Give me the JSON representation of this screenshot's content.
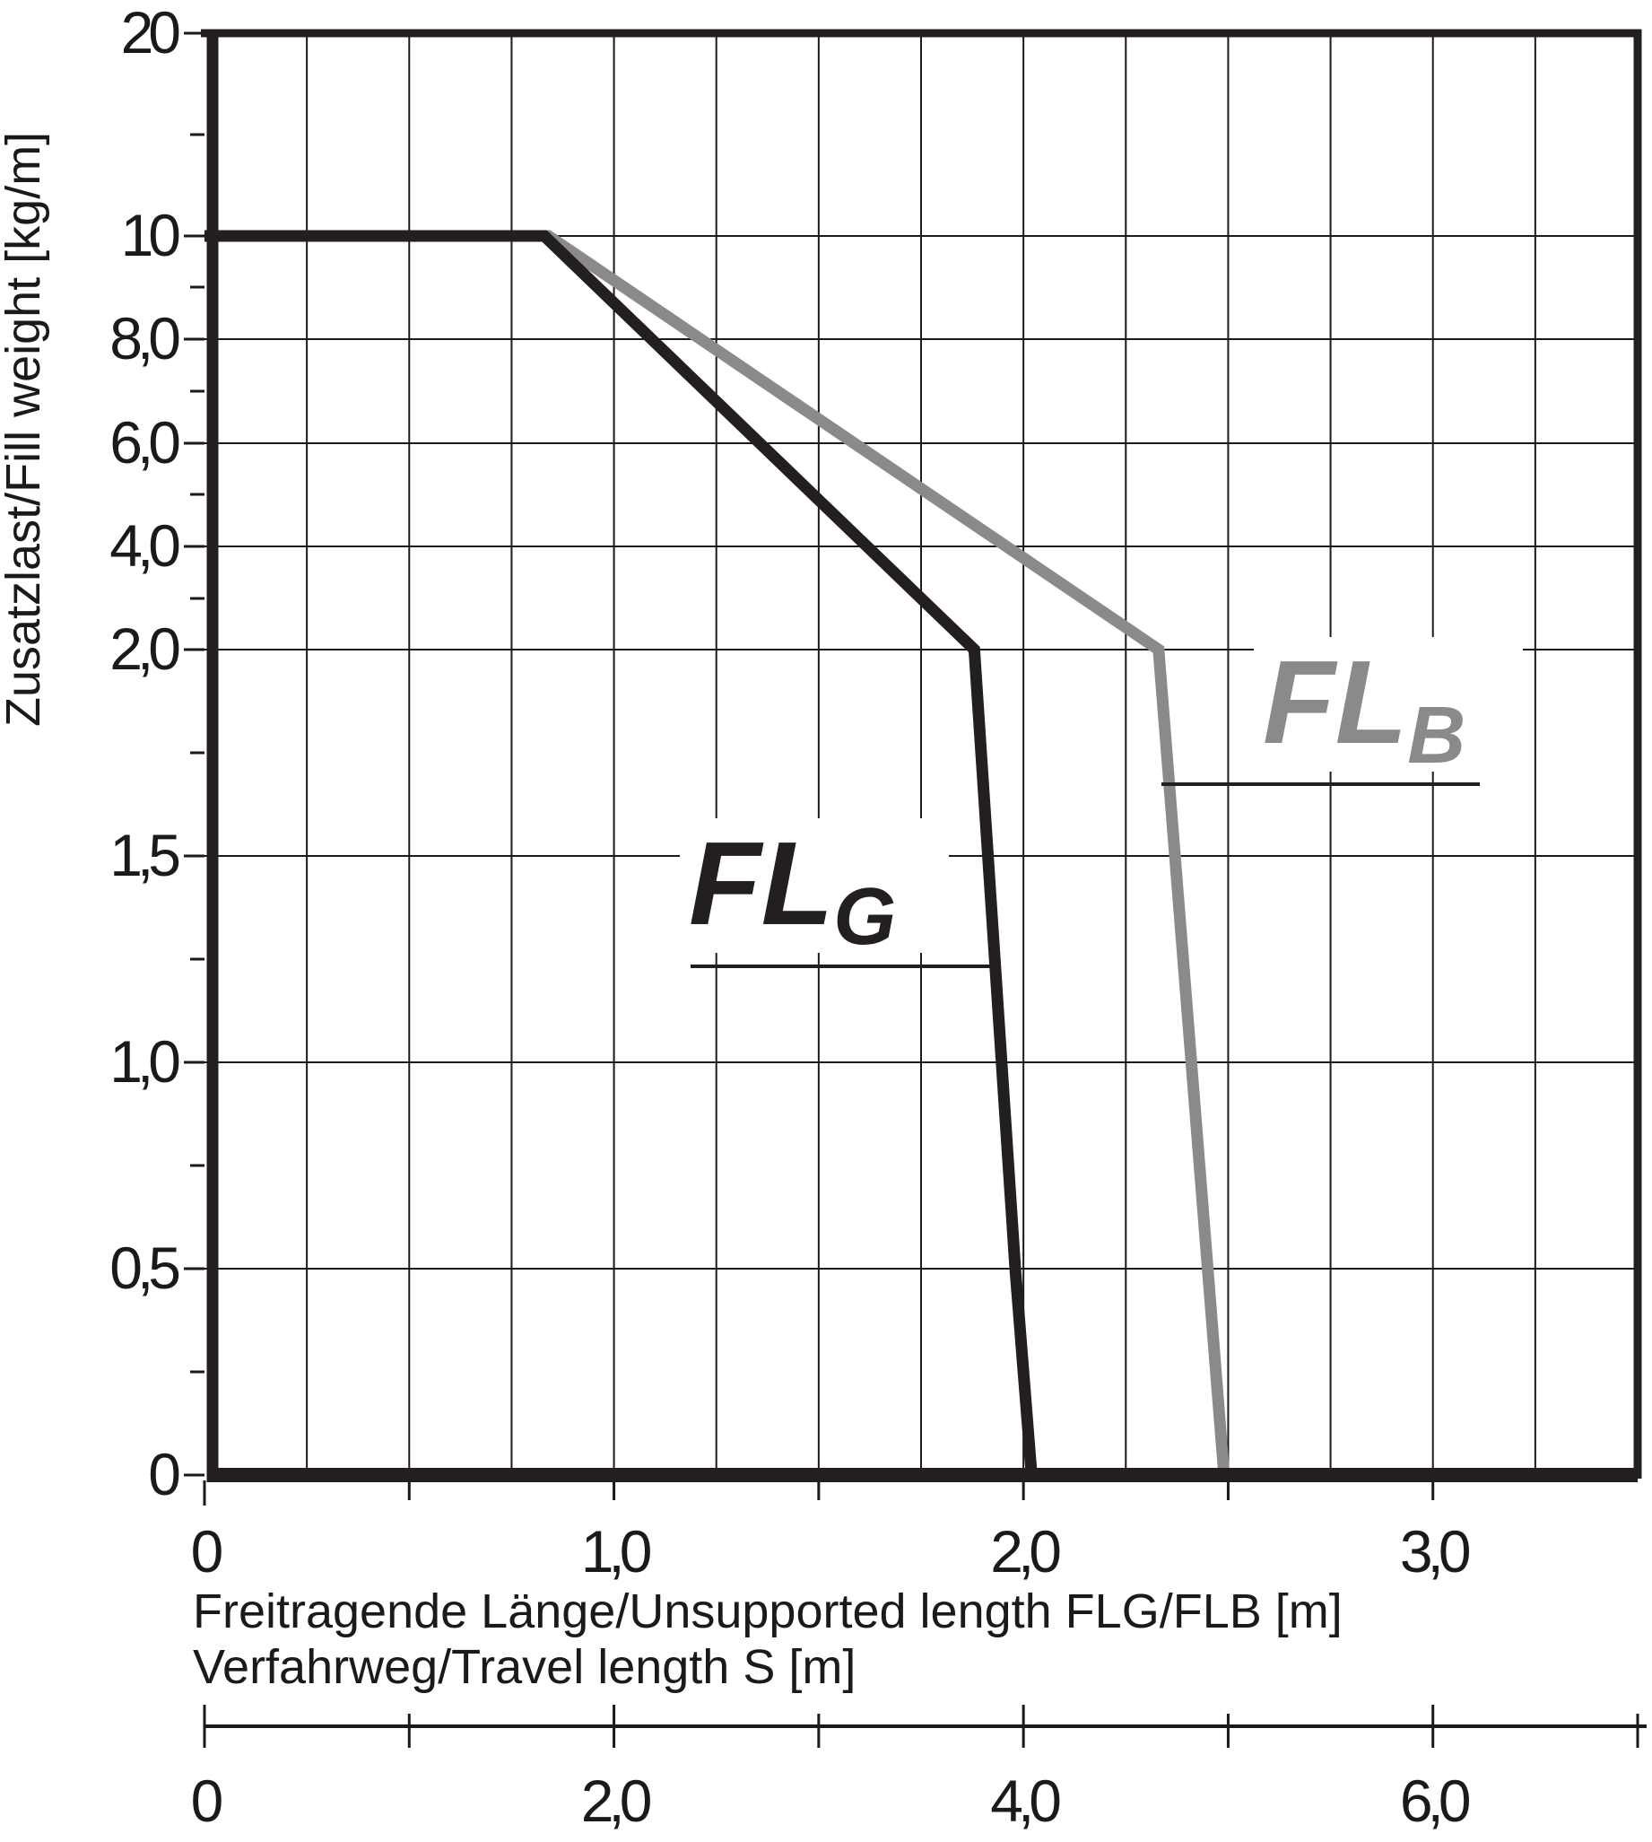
{
  "chart_data": {
    "type": "line",
    "ylabel": "Zusatzlast/Fill weight [kg/m]",
    "xlabel": "Freitragende Länge/Unsupported length FLG/FLB [m]",
    "x2label": "Verfahrweg/Travel length S [m]",
    "y_tick_labels": [
      "0",
      "0,5",
      "1,0",
      "1,5",
      "2,0",
      "4,0",
      "6,0",
      "8,0",
      "10",
      "20"
    ],
    "x_tick_labels": [
      "0",
      "1,0",
      "2,0",
      "3,0"
    ],
    "x2_tick_labels": [
      "0",
      "2,0",
      "4,0",
      "6,0"
    ],
    "xlim": [
      0,
      3.5
    ],
    "x2lim": [
      0,
      7
    ],
    "grid": true,
    "series": [
      {
        "name": "FLG",
        "label_main": "FL",
        "label_sub": "G",
        "color": "#231f20",
        "x": [
          0,
          0.83,
          1.88,
          1.98,
          2.02
        ],
        "y": [
          10,
          10,
          2.0,
          0.5,
          0
        ]
      },
      {
        "name": "FLB",
        "label_main": "FL",
        "label_sub": "B",
        "color": "#8a8a8a",
        "x": [
          0,
          0.84,
          2.33,
          2.45,
          2.49
        ],
        "y": [
          10,
          10,
          2.0,
          0.5,
          0
        ]
      }
    ]
  }
}
